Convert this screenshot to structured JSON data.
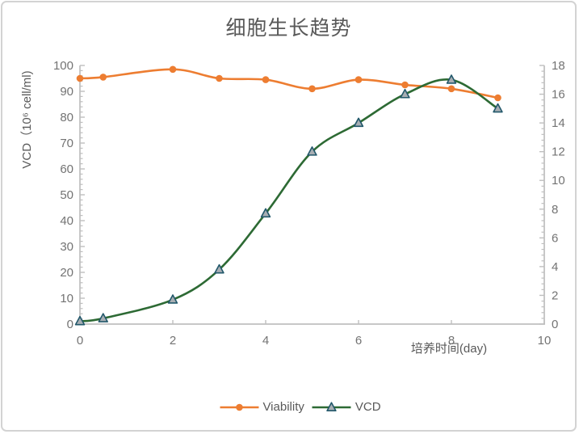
{
  "frame": {
    "background": "#ffffff",
    "border_color": "#d3d3d3"
  },
  "chart_data": {
    "type": "line",
    "title": "细胞生长趋势",
    "smooth": true,
    "grid": false,
    "x": [
      0,
      0.5,
      2,
      3,
      4,
      5,
      6,
      7,
      8,
      9
    ],
    "series": [
      {
        "name": "Viability",
        "axis": "left",
        "marker": "circle",
        "color": "#ED7D31",
        "marker_fill": "#ED7D31",
        "marker_stroke": "#ED7D31",
        "values": [
          95,
          95.5,
          98.5,
          95,
          94.5,
          91,
          94.5,
          92.5,
          91,
          87.5
        ]
      },
      {
        "name": "VCD",
        "axis": "right",
        "marker": "triangle",
        "color": "#2D6A34",
        "marker_fill": "#A8AEB3",
        "marker_stroke": "#22586B",
        "values": [
          0.2,
          0.4,
          1.7,
          3.8,
          7.7,
          12,
          14,
          16,
          17,
          15
        ]
      }
    ],
    "x_axis": {
      "title": "培养时间(day)",
      "min": 0,
      "max": 10,
      "step": 2,
      "tick_labels": [
        "0",
        "2",
        "4",
        "6",
        "8",
        "10"
      ]
    },
    "left_axis": {
      "title": "VCD（10⁶ cell/ml)",
      "min": 0,
      "max": 100,
      "step": 10,
      "minor_step": 2,
      "tick_labels": [
        "0",
        "10",
        "20",
        "30",
        "40",
        "50",
        "60",
        "70",
        "80",
        "90",
        "100"
      ]
    },
    "right_axis": {
      "min": 0,
      "max": 18,
      "step": 2,
      "minor_step": 0.4,
      "tick_labels": [
        "0",
        "2",
        "4",
        "6",
        "8",
        "10",
        "12",
        "14",
        "16",
        "18"
      ]
    },
    "legend": {
      "position": "bottom",
      "items": [
        "Viability",
        "VCD"
      ]
    },
    "style": {
      "axis_color": "#BFBFBF",
      "tick_label_color": "#737373",
      "title_color": "#595959",
      "axis_title_color": "#595959",
      "legend_text_color": "#595959"
    }
  }
}
